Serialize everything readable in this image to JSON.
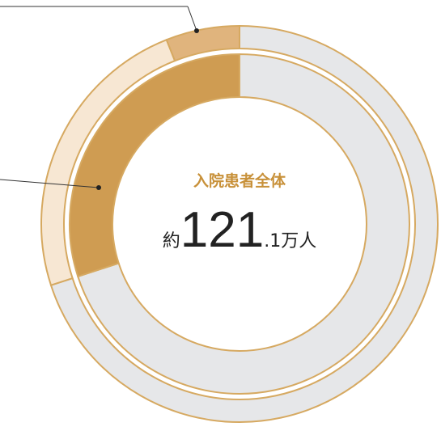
{
  "chart_data": {
    "type": "donut",
    "center": {
      "title": "入院患者全体",
      "prefix": "約",
      "integer": "121",
      "decimal": ".1",
      "unit": "万人"
    },
    "rings": [
      {
        "values": [
          70,
          24,
          6
        ],
        "colors": [
          "#e6e7e9",
          "#f7e7d3",
          "#e0b47d"
        ]
      },
      {
        "values": [
          70,
          30
        ],
        "colors": [
          "#e6e7e9",
          "#cf9c52"
        ]
      }
    ],
    "border_color": "#d6a961",
    "title_color": "#c8913a"
  }
}
